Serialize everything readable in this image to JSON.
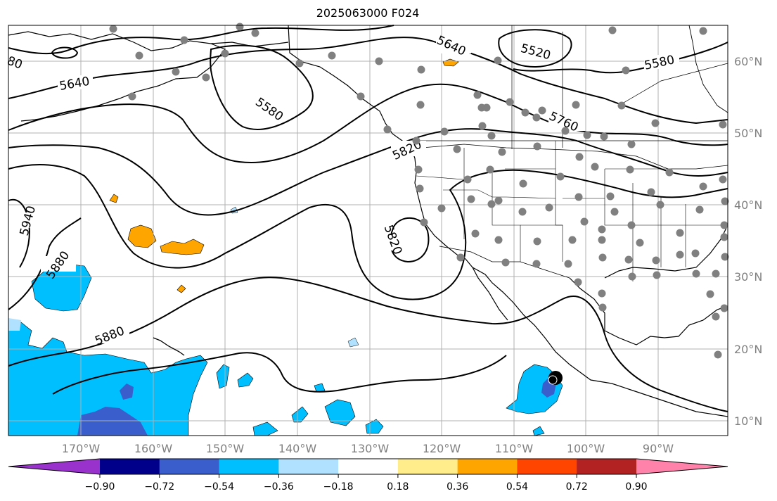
{
  "title": "2025063000 F024",
  "lon_ticks": [
    "170°W",
    "160°W",
    "150°W",
    "140°W",
    "130°W",
    "120°W",
    "110°W",
    "100°W",
    "90°W"
  ],
  "lat_ticks": [
    "60°N",
    "50°N",
    "40°N",
    "30°N",
    "20°N",
    "10°N"
  ],
  "colorbar": {
    "tick_labels": [
      "−0.90",
      "−0.72",
      "−0.54",
      "−0.36",
      "−0.18",
      "0.18",
      "0.36",
      "0.54",
      "0.72",
      "0.90"
    ],
    "colors": [
      "#9932cc",
      "#00008b",
      "#3a5fcd",
      "#00bfff",
      "#b0e2ff",
      "#ffffff",
      "#ffec8b",
      "#ffa500",
      "#ff4500",
      "#b22222",
      "#ff82ab"
    ]
  },
  "contour_labels": [
    "5640",
    "5640",
    "5520",
    "5580",
    "5580",
    "5760",
    "5820",
    "5820",
    "5940",
    "5880",
    "5880",
    "80"
  ],
  "colors": {
    "grid": "#b0b0b0",
    "station": "#808080",
    "contour": "#000000"
  }
}
